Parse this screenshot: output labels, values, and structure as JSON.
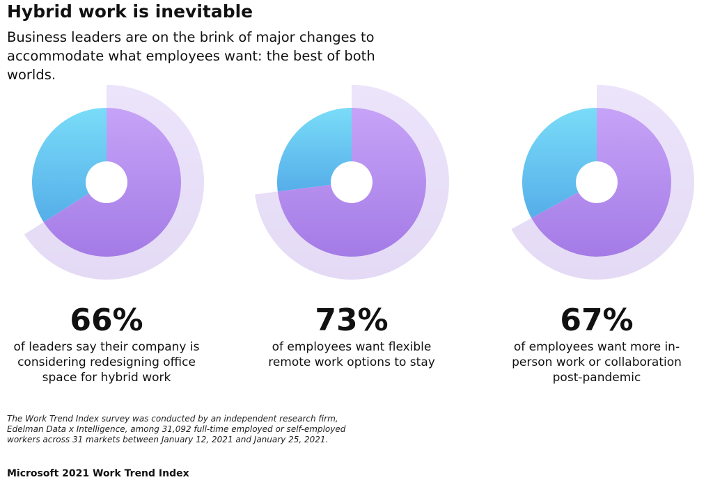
{
  "title": "Hybrid work is inevitable",
  "subtitle": "Business leaders are on the brink of major changes to accommodate what employees want: the best of both worlds.",
  "chart_data": [
    {
      "type": "donut",
      "values": [
        66
      ],
      "value_labels": [
        "66%"
      ],
      "caption": "of leaders say their company is considering redesigning office space for hybrid work"
    },
    {
      "type": "donut",
      "values": [
        73
      ],
      "value_labels": [
        "73%"
      ],
      "caption": "of employees want flexible remote work options to stay"
    },
    {
      "type": "donut",
      "values": [
        67
      ],
      "value_labels": [
        "67%"
      ],
      "caption": "of employees want more in-person work or collaboration post-pandemic"
    }
  ],
  "footnote": "The Work Trend Index survey was conducted by an independent research firm, Edelman Data x Intelligence, among 31,092 full-time employed or self-employed workers across 31 markets between January 12, 2021 and January 25, 2021.",
  "source": "Microsoft 2021 Work Trend Index"
}
